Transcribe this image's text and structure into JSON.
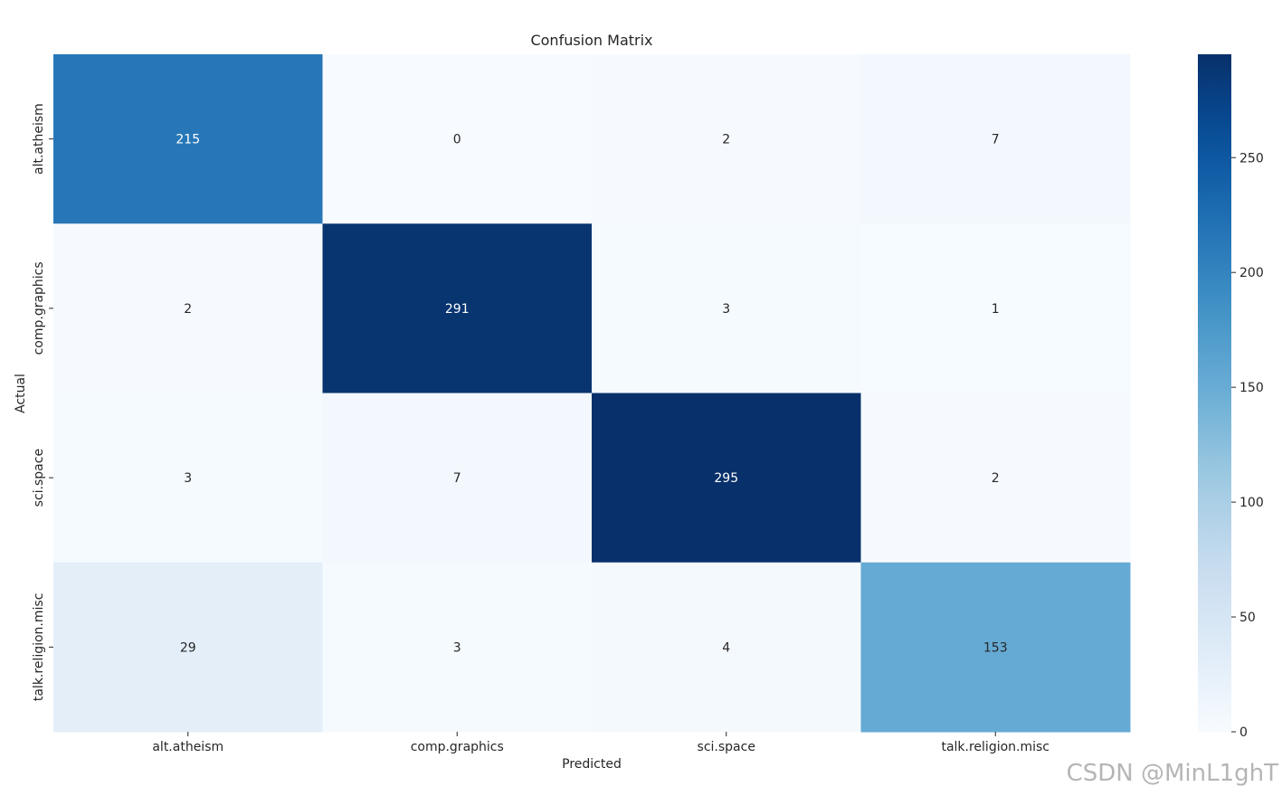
{
  "chart_data": {
    "type": "heatmap",
    "title": "Confusion Matrix",
    "xlabel": "Predicted",
    "ylabel": "Actual",
    "x_categories": [
      "alt.atheism",
      "comp.graphics",
      "sci.space",
      "talk.religion.misc"
    ],
    "y_categories": [
      "alt.atheism",
      "comp.graphics",
      "sci.space",
      "talk.religion.misc"
    ],
    "values": [
      [
        215,
        0,
        2,
        7
      ],
      [
        2,
        291,
        3,
        1
      ],
      [
        3,
        7,
        295,
        2
      ],
      [
        29,
        3,
        4,
        153
      ]
    ],
    "colormap": "Blues",
    "colorbar": {
      "min": 0,
      "max": 295,
      "ticks": [
        0,
        50,
        100,
        150,
        200,
        250
      ]
    },
    "annotate": true
  },
  "watermark": "CSDN @MinL1ghT"
}
